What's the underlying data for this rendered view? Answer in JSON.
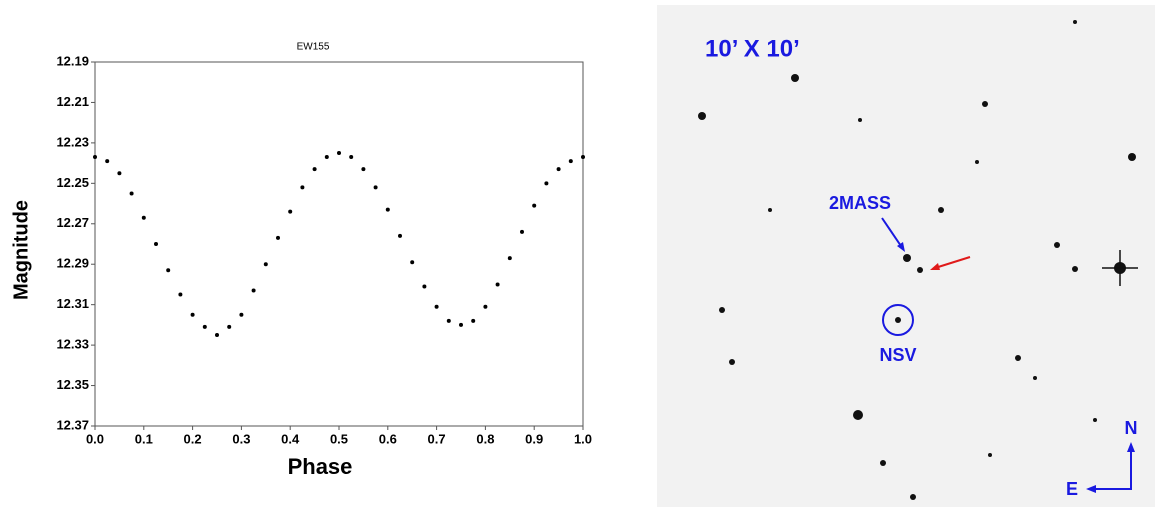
{
  "chart_data": {
    "type": "scatter",
    "title": "EW155",
    "x_label": "Phase",
    "y_label": "Magnitude",
    "x": [
      0.0,
      0.025,
      0.05,
      0.075,
      0.1,
      0.125,
      0.15,
      0.175,
      0.2,
      0.225,
      0.25,
      0.275,
      0.3,
      0.325,
      0.35,
      0.375,
      0.4,
      0.425,
      0.45,
      0.475,
      0.5,
      0.525,
      0.55,
      0.575,
      0.6,
      0.625,
      0.65,
      0.675,
      0.7,
      0.725,
      0.75,
      0.775,
      0.8,
      0.825,
      0.85,
      0.875,
      0.9,
      0.925,
      0.95,
      0.975,
      1.0
    ],
    "values": [
      12.237,
      12.239,
      12.245,
      12.255,
      12.267,
      12.28,
      12.293,
      12.305,
      12.315,
      12.321,
      12.325,
      12.321,
      12.315,
      12.303,
      12.29,
      12.277,
      12.264,
      12.252,
      12.243,
      12.237,
      12.235,
      12.237,
      12.243,
      12.252,
      12.263,
      12.276,
      12.289,
      12.301,
      12.311,
      12.318,
      12.32,
      12.318,
      12.311,
      12.3,
      12.287,
      12.274,
      12.261,
      12.25,
      12.243,
      12.239,
      12.237
    ],
    "color": "#000000",
    "xlim": [
      0,
      1
    ],
    "xticks": [
      {
        "value": 0,
        "label": "0.0"
      },
      0.1,
      0.2,
      0.3,
      0.4,
      0.5,
      0.6,
      0.7,
      0.8,
      0.9,
      {
        "value": 1,
        "label": "1.0"
      }
    ],
    "ylim": [
      12.19,
      12.37
    ],
    "y_inverted": true,
    "yticks": [
      12.19,
      12.21,
      12.23,
      12.25,
      12.27,
      12.29,
      12.31,
      12.33,
      12.35,
      12.37
    ]
  },
  "image_panel": {
    "scale": "10’ X 10’",
    "labels": [
      "2MASS",
      "NSV"
    ],
    "north": "N",
    "east": "E"
  }
}
